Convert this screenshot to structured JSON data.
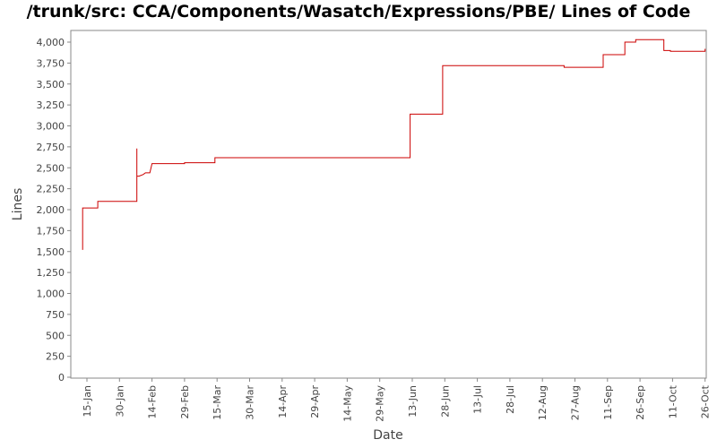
{
  "chart_data": {
    "type": "line",
    "title": "/trunk/src: CCA/Components/Wasatch/Expressions/PBE/ Lines of Code",
    "xlabel": "Date",
    "ylabel": "Lines",
    "ylim": [
      0,
      4100
    ],
    "xlim": [
      -6,
      281
    ],
    "grid": false,
    "y_ticks": [
      0,
      250,
      500,
      750,
      1000,
      1250,
      1500,
      1750,
      2000,
      2250,
      2500,
      2750,
      3000,
      3250,
      3500,
      3750,
      4000
    ],
    "y_tick_labels": [
      "0",
      "250",
      "500",
      "750",
      "1,000",
      "1,250",
      "1,500",
      "1,750",
      "2,000",
      "2,250",
      "2,500",
      "2,750",
      "3,000",
      "3,250",
      "3,500",
      "3,750",
      "4,000"
    ],
    "x_ticks": [
      0,
      15,
      30,
      45,
      60,
      75,
      90,
      105,
      120,
      135,
      150,
      165,
      180,
      195,
      210,
      225,
      240,
      255,
      270,
      285
    ],
    "x_tick_labels": [
      "15-Jan",
      "30-Jan",
      "14-Feb",
      "29-Feb",
      "15-Mar",
      "30-Mar",
      "14-Apr",
      "29-Apr",
      "14-May",
      "29-May",
      "13-Jun",
      "28-Jun",
      "13-Jul",
      "28-Jul",
      "12-Aug",
      "27-Aug",
      "11-Sep",
      "26-Sep",
      "11-Oct",
      "26-Oct"
    ],
    "series": [
      {
        "color": "#cc0000",
        "step": true,
        "x": [
          -2,
          -2,
          5,
          5,
          23,
          23,
          23,
          24,
          26,
          27,
          29,
          30,
          45,
          45,
          59,
          59,
          59,
          104,
          149,
          149,
          164,
          164,
          220,
          220,
          238,
          238,
          248,
          248,
          253,
          253,
          266,
          266,
          269,
          269,
          285,
          285
        ],
        "y": [
          1520,
          2020,
          2020,
          2100,
          2100,
          2730,
          2400,
          2400,
          2420,
          2440,
          2440,
          2550,
          2550,
          2560,
          2560,
          2600,
          2620,
          2620,
          2620,
          3140,
          3140,
          3720,
          3720,
          3700,
          3700,
          3850,
          3850,
          4000,
          4000,
          4030,
          4030,
          3900,
          3900,
          3890,
          3890,
          3920
        ]
      }
    ]
  }
}
